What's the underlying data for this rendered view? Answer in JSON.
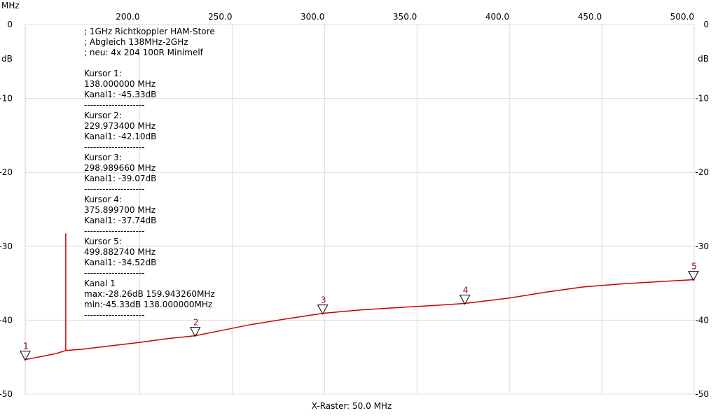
{
  "chart_data": {
    "type": "line",
    "x_unit_label": "MHz",
    "y_unit_label": "dB",
    "x_raster_label": "X-Raster: 50.0 MHz",
    "xlim": [
      138.0,
      500.0
    ],
    "ylim": [
      -50,
      0
    ],
    "x_ticks": [
      200.0,
      250.0,
      300.0,
      350.0,
      400.0,
      450.0,
      500.0
    ],
    "x_tick_labels": [
      "200.0",
      "250.0",
      "300.0",
      "350.0",
      "400.0",
      "450.0",
      "500.0"
    ],
    "y_ticks": [
      0,
      -10,
      -20,
      -30,
      -40,
      -50
    ],
    "y_tick_labels": [
      "0",
      "-10",
      "-20",
      "-30",
      "-40",
      "-50"
    ],
    "grid": true,
    "series": [
      {
        "color": "#cc0000",
        "x": [
          138,
          145,
          155,
          160,
          170,
          180,
          200,
          215,
          229.97,
          240,
          260,
          280,
          298.99,
          320,
          340,
          360,
          375.9,
          400,
          420,
          440,
          460,
          480,
          499.88
        ],
        "y": [
          -45.33,
          -45.0,
          -44.5,
          -44.1,
          -43.9,
          -43.6,
          -43.0,
          -42.5,
          -42.1,
          -41.6,
          -40.6,
          -39.8,
          -39.07,
          -38.6,
          -38.3,
          -38.0,
          -37.74,
          -37.0,
          -36.2,
          -35.5,
          -35.1,
          -34.8,
          -34.52
        ]
      }
    ],
    "spike": {
      "x": 159.94326,
      "y": -28.26,
      "base": -44.1
    },
    "markers": [
      {
        "label": "1",
        "x": 138.0,
        "y": -45.33
      },
      {
        "label": "2",
        "x": 229.9734,
        "y": -42.1
      },
      {
        "label": "3",
        "x": 298.98966,
        "y": -39.07
      },
      {
        "label": "4",
        "x": 375.8997,
        "y": -37.74
      },
      {
        "label": "5",
        "x": 499.88274,
        "y": -34.52
      }
    ],
    "annotation_lines": [
      "; 1GHz Richtkoppler HAM-Store",
      "; Abgleich 138MHz-2GHz",
      "; neu: 4x 204 100R Minimelf",
      "",
      "Kursor 1:",
      "138.000000 MHz",
      "Kanal1: -45.33dB",
      "--------------------",
      "Kursor 2:",
      "229.973400 MHz",
      "Kanal1: -42.10dB",
      "--------------------",
      "Kursor 3:",
      "298.989660 MHz",
      "Kanal1: -39.07dB",
      "--------------------",
      "Kursor 4:",
      "375.899700 MHz",
      "Kanal1: -37.74dB",
      "--------------------",
      "Kursor 5:",
      "499.882740 MHz",
      "Kanal1: -34.52dB",
      "--------------------",
      "Kanal 1",
      "max:-28.26dB 159.943260MHz",
      "min:-45.33dB 138.000000MHz",
      "--------------------"
    ]
  }
}
